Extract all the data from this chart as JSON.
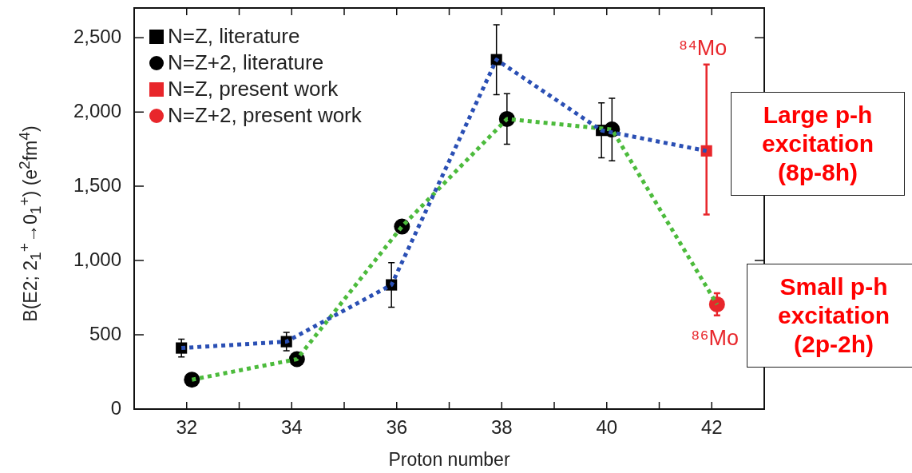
{
  "chart_data": {
    "type": "scatter",
    "xlabel": "Proton number",
    "ylabel": "B(E2; 2$_{1}$$^{+}$→0$_{1}$$^{+}$) (e$^{2}$fm$^{4}$)",
    "xlim": [
      31,
      43
    ],
    "xticks": [
      32,
      {
        "value": 33,
        "label": null
      },
      34,
      {
        "value": 35,
        "label": null
      },
      36,
      {
        "value": 37,
        "label": null
      },
      38,
      {
        "value": 39,
        "label": null
      },
      40,
      {
        "value": 41,
        "label": null
      },
      42
    ],
    "ylim": [
      0,
      2700
    ],
    "yticks": [
      0,
      500,
      {
        "value": 1000,
        "label": "1,000"
      },
      {
        "value": 1500,
        "label": "1,500"
      },
      {
        "value": 2000,
        "label": "2,000"
      },
      {
        "value": 2500,
        "label": "2,500"
      }
    ],
    "grid": false,
    "legend": "top left",
    "series": [
      {
        "type": "line",
        "color": "#2a4fb4",
        "line_style": "dotted",
        "marker": "none",
        "x": [
          31.9,
          33.9,
          35.9,
          37.9,
          39.9,
          41.9
        ],
        "values": [
          411,
          454,
          836,
          2352,
          1876,
          1738
        ]
      },
      {
        "type": "line",
        "color": "#4cbb3c",
        "line_style": "dotted",
        "marker": "none",
        "x": [
          32.1,
          34.1,
          36.1,
          38.1,
          40.1,
          42.1
        ],
        "values": [
          198,
          336,
          1229,
          1953,
          1882,
          705
        ]
      },
      {
        "name": "N=Z, literature",
        "color": "#000000",
        "marker": "square",
        "x": [
          31.9,
          33.9,
          35.9,
          37.9,
          39.9
        ],
        "values": [
          411,
          454,
          836,
          2352,
          1876
        ],
        "errors": [
          60,
          62,
          150,
          235,
          185
        ]
      },
      {
        "name": "N=Z+2, literature",
        "color": "#000000",
        "marker": "circle",
        "x": [
          32.1,
          34.1,
          36.1,
          38.1,
          40.1
        ],
        "values": [
          198,
          336,
          1229,
          1953,
          1882
        ],
        "errors": [
          null,
          null,
          null,
          170,
          210
        ]
      },
      {
        "name": "N=Z, present work",
        "color": "#e8262b",
        "marker": "square",
        "x": [
          41.9
        ],
        "values": [
          1738
        ],
        "errors": [
          [
            1310,
            2320
          ]
        ]
      },
      {
        "name": "N=Z+2, present work",
        "color": "#e8262b",
        "marker": "circle",
        "x": [
          42.1
        ],
        "values": [
          705
        ],
        "errors": [
          75
        ]
      }
    ],
    "annotations": [
      "⁸⁴Mo",
      "⁸⁶Mo",
      "Large p-h excitation (8p-8h)",
      "Small p-h excitation (2p-2h)"
    ]
  }
}
